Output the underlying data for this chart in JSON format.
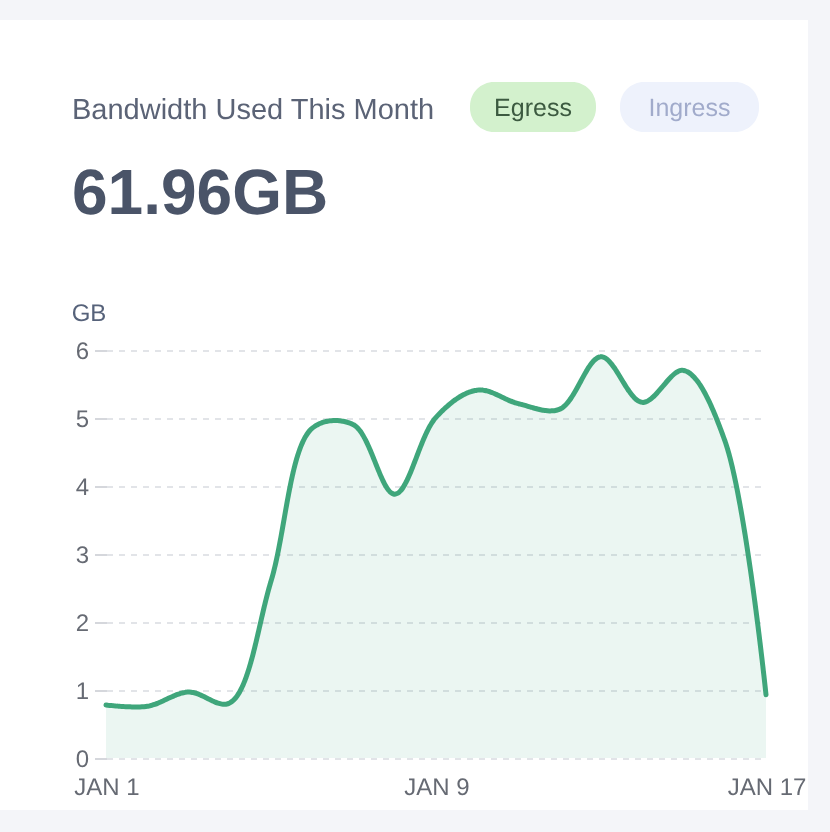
{
  "chart_data": {
    "type": "area",
    "title": "Bandwidth Used This Month",
    "subtitle": "61.96GB",
    "ylabel": "GB",
    "annotations": [
      "Egress",
      "Ingress"
    ],
    "categories": [
      "JAN 1",
      null,
      null,
      null,
      null,
      null,
      null,
      null,
      "JAN 9",
      null,
      null,
      null,
      null,
      null,
      null,
      null,
      "JAN 17"
    ],
    "series": [
      {
        "color": "#3fa67b",
        "values": [
          0.78,
          0.76,
          0.97,
          0.81,
          2.6,
          4.85,
          4.9,
          3.88,
          5.01,
          5.41,
          5.21,
          5.13,
          5.9,
          5.23,
          5.7,
          4.67,
          0.93
        ]
      }
    ],
    "ylim": [
      0,
      6
    ],
    "yticks": [
      0,
      1,
      2,
      3,
      4,
      5,
      6
    ],
    "grid": "y"
  }
}
